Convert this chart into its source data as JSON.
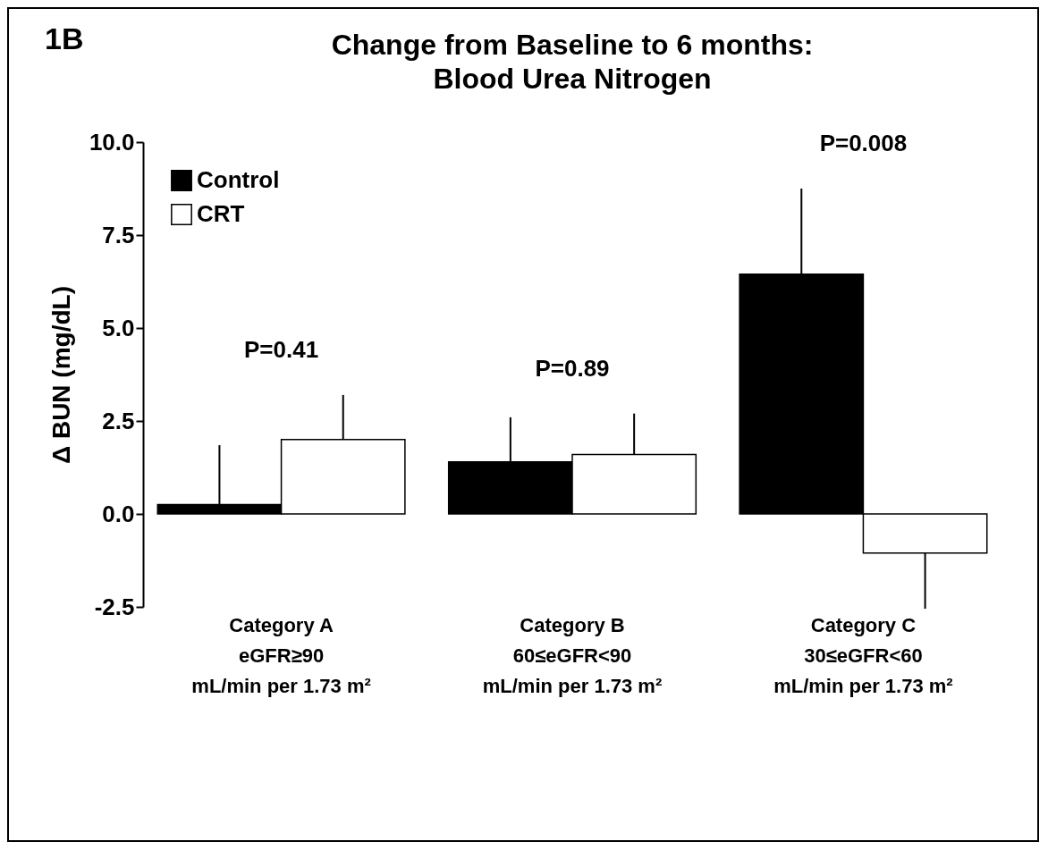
{
  "chart_data": {
    "type": "bar",
    "title": "Change from Baseline to 6 months:\nBlood Urea Nitrogen",
    "ylabel": "Δ BUN (mg/dL)",
    "categories": [
      "Category A\neGFR≥90\nmL/min per 1.73 m²",
      "Category B\n60≤eGFR<90\nmL/min per 1.73 m²",
      "Category C\n30≤eGFR<60\nmL/min per 1.73 m²"
    ],
    "series": [
      {
        "name": "Control",
        "color": "#000000",
        "values": [
          0.25,
          1.4,
          6.45
        ],
        "errors": [
          [
            0.25,
            1.85
          ],
          [
            1.4,
            2.6
          ],
          [
            6.45,
            8.75
          ]
        ]
      },
      {
        "name": "CRT",
        "color": "#ffffff",
        "values": [
          2.0,
          1.6,
          -1.05
        ],
        "errors": [
          [
            2.0,
            3.2
          ],
          [
            1.6,
            2.7
          ],
          [
            -2.55,
            -1.05
          ]
        ]
      }
    ],
    "ylim": [
      -2.5,
      10
    ],
    "yticks": [
      {
        "value": -2.5,
        "label": "-2.5"
      },
      {
        "value": 0,
        "label": "0.0"
      },
      {
        "value": 2.5,
        "label": "2.5"
      },
      {
        "value": 5,
        "label": "5.0"
      },
      {
        "value": 7.5,
        "label": "7.5"
      },
      {
        "value": 10,
        "label": "10.0"
      }
    ],
    "legend": "top left",
    "grid": false,
    "annotations": [
      "1B",
      "P=0.41",
      "P=0.89",
      "P=0.008"
    ]
  }
}
